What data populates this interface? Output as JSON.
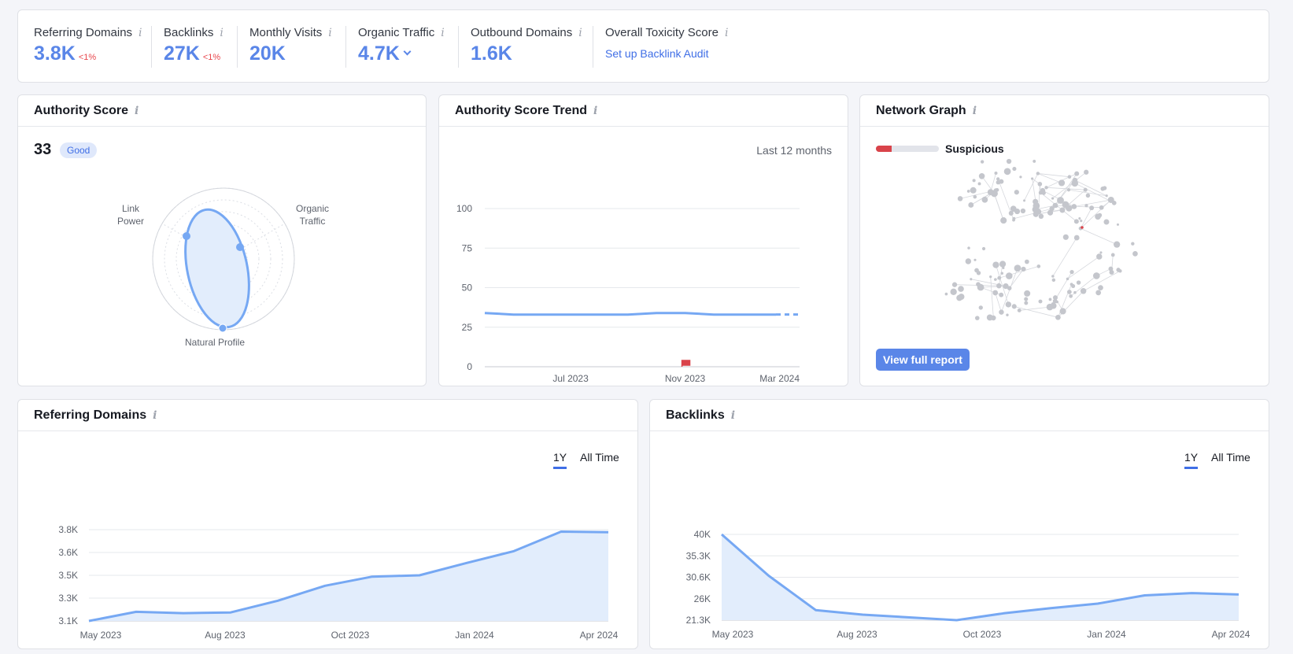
{
  "summary": {
    "referring_domains": {
      "label": "Referring Domains",
      "value": "3.8K",
      "delta": "<1%"
    },
    "backlinks": {
      "label": "Backlinks",
      "value": "27K",
      "delta": "<1%"
    },
    "monthly_visits": {
      "label": "Monthly Visits",
      "value": "20K"
    },
    "organic_traffic": {
      "label": "Organic Traffic",
      "value": "4.7K"
    },
    "outbound_domains": {
      "label": "Outbound Domains",
      "value": "1.6K"
    },
    "toxicity": {
      "label": "Overall Toxicity Score",
      "link": "Set up Backlink Audit"
    }
  },
  "authority_score": {
    "title": "Authority Score",
    "score": "33",
    "badge": "Good",
    "axes": {
      "link_power": "Link\nPower",
      "organic_traffic": "Organic\nTraffic",
      "natural_profile": "Natural Profile"
    }
  },
  "trend": {
    "title": "Authority Score Trend",
    "period": "Last 12 months"
  },
  "network": {
    "title": "Network Graph",
    "status": "Suspicious",
    "level": 0.25,
    "button": "View full report"
  },
  "ref_domains_card": {
    "title": "Referring Domains",
    "toggle_1y": "1Y",
    "toggle_all": "All Time"
  },
  "backlinks_card": {
    "title": "Backlinks",
    "toggle_1y": "1Y",
    "toggle_all": "All Time"
  },
  "colors": {
    "accent": "#5a86e8",
    "line": "#76a8f3",
    "fill": "#e2edfc",
    "danger": "#d9434a"
  },
  "chart_data": [
    {
      "type": "line",
      "name": "authority-score-trend",
      "x": [
        "Apr 2023",
        "May 2023",
        "Jun 2023",
        "Jul 2023",
        "Aug 2023",
        "Sep 2023",
        "Oct 2023",
        "Nov 2023",
        "Dec 2023",
        "Jan 2024",
        "Feb 2024",
        "Mar 2024"
      ],
      "values": [
        34,
        33,
        33,
        33,
        33,
        33,
        34,
        34,
        33,
        33,
        33,
        33
      ],
      "x_ticks": [
        "Jul 2023",
        "Nov 2023",
        "Mar 2024"
      ],
      "y_ticks": [
        0,
        25,
        50,
        75,
        100
      ],
      "ylim": [
        0,
        100
      ],
      "marker": {
        "x": "Nov 2023",
        "label": "flag"
      }
    },
    {
      "type": "area",
      "name": "referring-domains",
      "x": [
        "May 2023",
        "Jun 2023",
        "Jul 2023",
        "Aug 2023",
        "Sep 2023",
        "Oct 2023",
        "Nov 2023",
        "Dec 2023",
        "Jan 2024",
        "Feb 2024",
        "Mar 2024",
        "Apr 2024"
      ],
      "values": [
        3100,
        3170,
        3160,
        3165,
        3255,
        3370,
        3440,
        3450,
        3545,
        3635,
        3785,
        3780
      ],
      "x_ticks": [
        "May 2023",
        "Aug 2023",
        "Oct 2023",
        "Jan 2024",
        "Apr 2024"
      ],
      "y_ticks": [
        "3.1K",
        "3.3K",
        "3.5K",
        "3.6K",
        "3.8K"
      ],
      "ylim": [
        3100,
        3800
      ]
    },
    {
      "type": "area",
      "name": "backlinks",
      "x": [
        "May 2023",
        "Jun 2023",
        "Jul 2023",
        "Aug 2023",
        "Sep 2023",
        "Oct 2023",
        "Nov 2023",
        "Dec 2023",
        "Jan 2024",
        "Feb 2024",
        "Mar 2024",
        "Apr 2024"
      ],
      "values": [
        40000,
        31000,
        23500,
        22500,
        21900,
        21300,
        22800,
        23900,
        24900,
        26700,
        27200,
        26900
      ],
      "x_ticks": [
        "May 2023",
        "Aug 2023",
        "Oct 2023",
        "Jan 2024",
        "Apr 2024"
      ],
      "y_ticks": [
        "21.3K",
        "26K",
        "30.6K",
        "35.3K",
        "40K"
      ],
      "ylim": [
        21300,
        40000
      ]
    }
  ]
}
